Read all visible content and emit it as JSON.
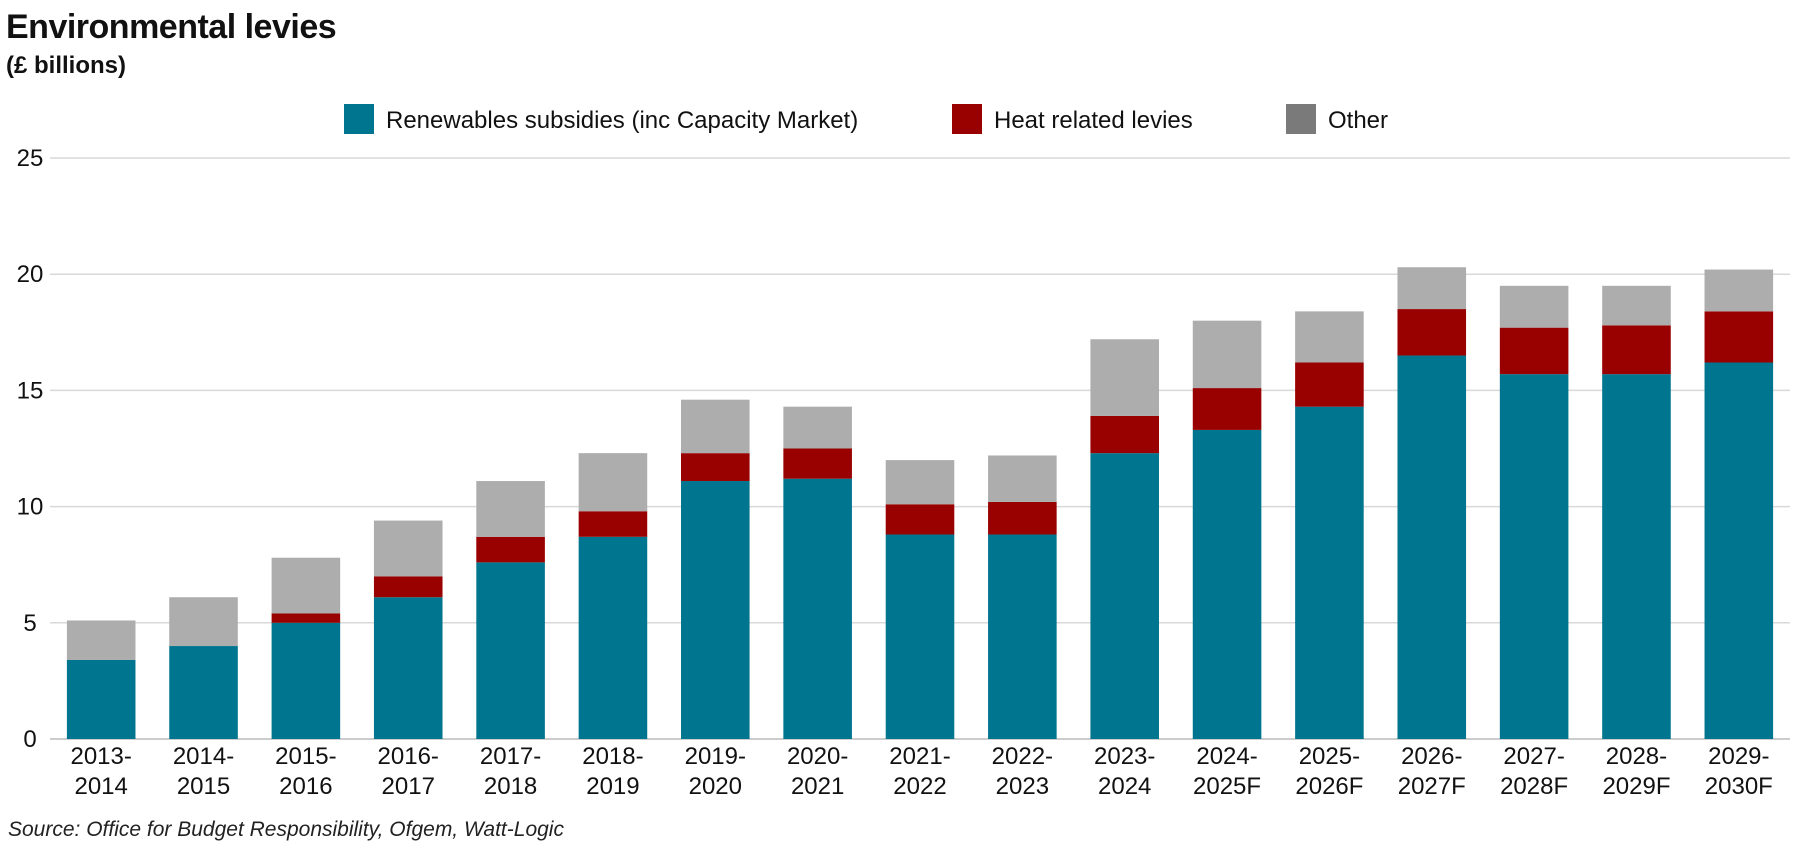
{
  "chart_data": {
    "type": "bar",
    "stacked": true,
    "title": "Environmental levies",
    "subtitle": "(£ billions)",
    "source": "Source: Office for Budget Responsibility, Ofgem, Watt-Logic",
    "categories": [
      "2013-2014",
      "2014-2015",
      "2015-2016",
      "2016-2017",
      "2017-2018",
      "2018-2019",
      "2019-2020",
      "2020-2021",
      "2021-2022",
      "2022-2023",
      "2023-2024",
      "2024-2025F",
      "2025-2026F",
      "2026-2027F",
      "2027-2028F",
      "2028-2029F",
      "2029-2030F"
    ],
    "series": [
      {
        "name": "Renewables subsidies (inc Capacity Market)",
        "color": "#00758F",
        "values": [
          3.4,
          4.0,
          5.0,
          6.1,
          7.6,
          8.7,
          11.1,
          11.2,
          8.8,
          8.8,
          12.3,
          13.3,
          14.3,
          16.5,
          15.7,
          15.7,
          16.2
        ]
      },
      {
        "name": "Heat related levies",
        "color": "#990000",
        "values": [
          0.0,
          0.0,
          0.4,
          0.9,
          1.1,
          1.1,
          1.2,
          1.3,
          1.3,
          1.4,
          1.6,
          1.8,
          1.9,
          2.0,
          2.0,
          2.1,
          2.2
        ]
      },
      {
        "name": "Other",
        "color": "#ADADAD",
        "values": [
          1.7,
          2.1,
          2.4,
          2.4,
          2.4,
          2.5,
          2.3,
          1.8,
          1.9,
          2.0,
          3.3,
          2.9,
          2.2,
          1.8,
          1.8,
          1.7,
          1.8
        ]
      }
    ],
    "legend_swatches": [
      "#00758F",
      "#990000",
      "#7A7A7A"
    ],
    "ylim": [
      0,
      25
    ],
    "yticks": [
      0,
      5,
      10,
      15,
      20,
      25
    ],
    "grid": true,
    "legend_position": "top"
  }
}
